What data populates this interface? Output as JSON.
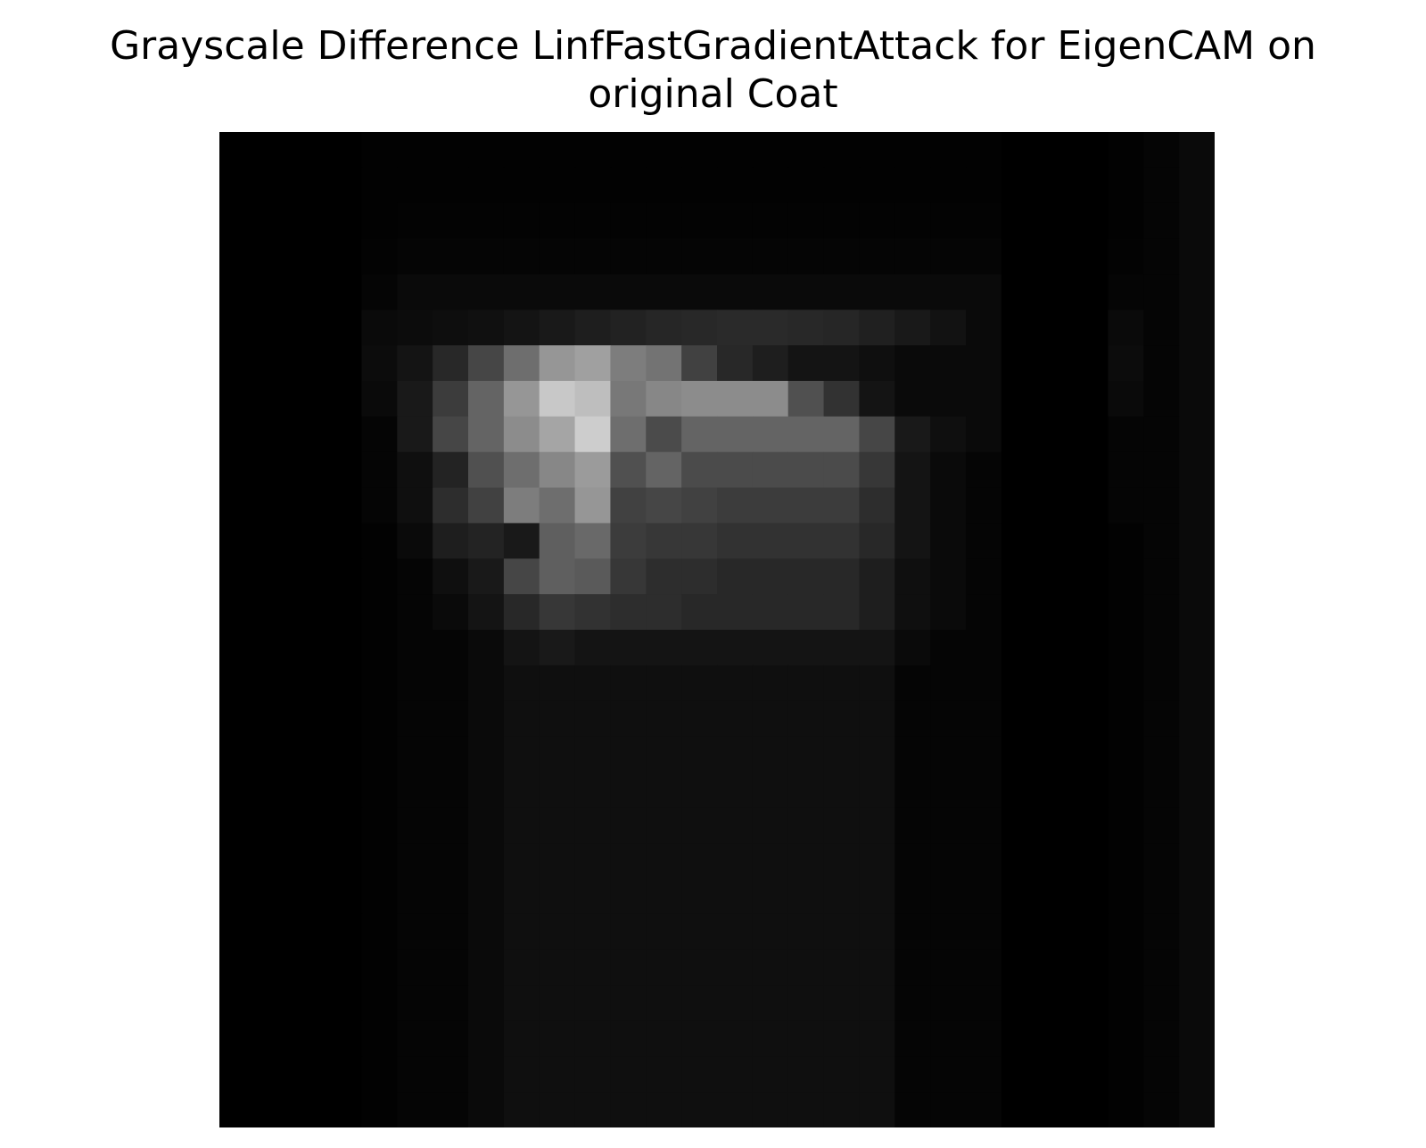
{
  "chart_data": {
    "type": "heatmap",
    "title_lines": [
      "Grayscale Difference LinfFastGradientAttack for EigenCAM on",
      "original Coat"
    ],
    "colormap": "gray",
    "value_range": [
      0,
      255
    ],
    "axes_visible": false,
    "grid": false,
    "rows": 28,
    "cols": 28,
    "values": [
      [
        0,
        0,
        0,
        0,
        2,
        2,
        2,
        2,
        2,
        2,
        2,
        2,
        2,
        2,
        2,
        2,
        2,
        2,
        2,
        2,
        2,
        2,
        0,
        0,
        0,
        2,
        5,
        10
      ],
      [
        0,
        0,
        0,
        0,
        2,
        2,
        2,
        2,
        2,
        2,
        2,
        2,
        2,
        2,
        2,
        2,
        2,
        2,
        2,
        2,
        2,
        2,
        0,
        0,
        0,
        2,
        5,
        10
      ],
      [
        0,
        0,
        0,
        0,
        2,
        3,
        3,
        3,
        3,
        3,
        3,
        3,
        3,
        3,
        3,
        3,
        3,
        3,
        3,
        3,
        3,
        3,
        0,
        0,
        0,
        2,
        5,
        10
      ],
      [
        0,
        0,
        0,
        0,
        3,
        5,
        5,
        5,
        5,
        5,
        5,
        5,
        5,
        5,
        5,
        5,
        5,
        5,
        5,
        5,
        5,
        5,
        0,
        0,
        0,
        3,
        5,
        10
      ],
      [
        0,
        0,
        0,
        0,
        5,
        10,
        10,
        10,
        10,
        10,
        10,
        10,
        10,
        10,
        10,
        10,
        10,
        10,
        10,
        10,
        10,
        10,
        0,
        0,
        0,
        5,
        5,
        10
      ],
      [
        0,
        0,
        0,
        0,
        10,
        12,
        14,
        16,
        20,
        25,
        30,
        34,
        38,
        40,
        42,
        42,
        40,
        38,
        32,
        25,
        18,
        10,
        0,
        0,
        0,
        10,
        5,
        10
      ],
      [
        0,
        0,
        0,
        0,
        12,
        20,
        40,
        70,
        110,
        150,
        160,
        125,
        115,
        65,
        40,
        30,
        20,
        20,
        15,
        10,
        10,
        10,
        0,
        0,
        0,
        12,
        5,
        10
      ],
      [
        0,
        0,
        0,
        0,
        10,
        25,
        60,
        100,
        150,
        200,
        190,
        120,
        135,
        140,
        140,
        140,
        80,
        50,
        20,
        10,
        10,
        10,
        0,
        0,
        0,
        10,
        5,
        10
      ],
      [
        0,
        0,
        0,
        0,
        5,
        25,
        70,
        100,
        140,
        165,
        205,
        110,
        75,
        100,
        100,
        100,
        100,
        100,
        70,
        25,
        15,
        10,
        0,
        0,
        0,
        5,
        5,
        10
      ],
      [
        0,
        0,
        0,
        0,
        5,
        15,
        35,
        80,
        110,
        135,
        155,
        80,
        100,
        75,
        75,
        75,
        75,
        75,
        55,
        20,
        10,
        5,
        0,
        0,
        0,
        5,
        5,
        10
      ],
      [
        0,
        0,
        0,
        0,
        5,
        15,
        45,
        65,
        125,
        110,
        150,
        65,
        70,
        65,
        60,
        60,
        60,
        60,
        45,
        20,
        10,
        5,
        0,
        0,
        0,
        5,
        5,
        10
      ],
      [
        0,
        0,
        0,
        0,
        2,
        10,
        30,
        35,
        25,
        95,
        105,
        60,
        55,
        55,
        50,
        50,
        50,
        50,
        40,
        20,
        10,
        5,
        0,
        0,
        0,
        2,
        5,
        10
      ],
      [
        0,
        0,
        0,
        0,
        2,
        5,
        15,
        25,
        70,
        95,
        90,
        55,
        45,
        45,
        40,
        40,
        40,
        40,
        30,
        15,
        10,
        5,
        0,
        0,
        0,
        2,
        5,
        10
      ],
      [
        0,
        0,
        0,
        0,
        2,
        5,
        10,
        20,
        40,
        55,
        50,
        45,
        45,
        40,
        40,
        40,
        40,
        40,
        30,
        15,
        10,
        5,
        0,
        0,
        0,
        2,
        5,
        10
      ],
      [
        0,
        0,
        0,
        0,
        2,
        5,
        5,
        10,
        20,
        25,
        20,
        20,
        20,
        20,
        20,
        20,
        20,
        20,
        20,
        10,
        5,
        5,
        0,
        0,
        0,
        2,
        5,
        10
      ],
      [
        0,
        0,
        0,
        0,
        2,
        5,
        5,
        10,
        15,
        15,
        15,
        15,
        15,
        15,
        15,
        15,
        15,
        15,
        15,
        5,
        5,
        5,
        0,
        0,
        0,
        2,
        5,
        10
      ],
      [
        0,
        0,
        0,
        0,
        2,
        5,
        5,
        10,
        15,
        15,
        15,
        15,
        15,
        15,
        15,
        15,
        15,
        15,
        15,
        5,
        5,
        5,
        0,
        0,
        0,
        2,
        5,
        10
      ],
      [
        0,
        0,
        0,
        0,
        2,
        5,
        5,
        10,
        15,
        15,
        15,
        15,
        15,
        15,
        15,
        15,
        15,
        15,
        15,
        5,
        5,
        5,
        0,
        0,
        0,
        2,
        5,
        10
      ],
      [
        0,
        0,
        0,
        0,
        2,
        5,
        5,
        10,
        15,
        15,
        15,
        15,
        15,
        15,
        15,
        15,
        15,
        15,
        15,
        5,
        5,
        5,
        0,
        0,
        0,
        2,
        5,
        10
      ],
      [
        0,
        0,
        0,
        0,
        2,
        5,
        5,
        10,
        15,
        15,
        15,
        15,
        15,
        15,
        15,
        15,
        15,
        15,
        15,
        5,
        5,
        5,
        0,
        0,
        0,
        2,
        5,
        10
      ],
      [
        0,
        0,
        0,
        0,
        2,
        5,
        5,
        10,
        15,
        15,
        15,
        15,
        15,
        15,
        15,
        15,
        15,
        15,
        15,
        5,
        5,
        5,
        0,
        0,
        0,
        2,
        5,
        10
      ],
      [
        0,
        0,
        0,
        0,
        2,
        5,
        5,
        10,
        15,
        15,
        15,
        15,
        15,
        15,
        15,
        15,
        15,
        15,
        15,
        5,
        5,
        5,
        0,
        0,
        0,
        2,
        5,
        10
      ],
      [
        0,
        0,
        0,
        0,
        2,
        5,
        5,
        10,
        15,
        15,
        15,
        15,
        15,
        15,
        15,
        15,
        15,
        15,
        15,
        5,
        5,
        5,
        0,
        0,
        0,
        2,
        5,
        10
      ],
      [
        0,
        0,
        0,
        0,
        2,
        5,
        5,
        10,
        15,
        15,
        15,
        15,
        15,
        15,
        15,
        15,
        15,
        15,
        15,
        5,
        5,
        5,
        0,
        0,
        0,
        2,
        5,
        10
      ],
      [
        0,
        0,
        0,
        0,
        2,
        5,
        5,
        10,
        15,
        15,
        15,
        15,
        15,
        15,
        15,
        15,
        15,
        15,
        15,
        5,
        5,
        5,
        0,
        0,
        0,
        2,
        5,
        10
      ],
      [
        0,
        0,
        0,
        0,
        2,
        5,
        5,
        10,
        15,
        15,
        15,
        15,
        15,
        15,
        15,
        15,
        15,
        15,
        15,
        5,
        5,
        5,
        0,
        0,
        0,
        2,
        5,
        10
      ],
      [
        0,
        0,
        0,
        0,
        2,
        5,
        5,
        10,
        15,
        15,
        15,
        15,
        15,
        15,
        15,
        15,
        15,
        15,
        15,
        5,
        5,
        5,
        0,
        0,
        0,
        2,
        5,
        10
      ],
      [
        0,
        0,
        0,
        0,
        2,
        5,
        5,
        10,
        15,
        15,
        15,
        15,
        15,
        15,
        15,
        15,
        15,
        15,
        15,
        5,
        5,
        5,
        0,
        0,
        0,
        2,
        5,
        10
      ]
    ]
  }
}
